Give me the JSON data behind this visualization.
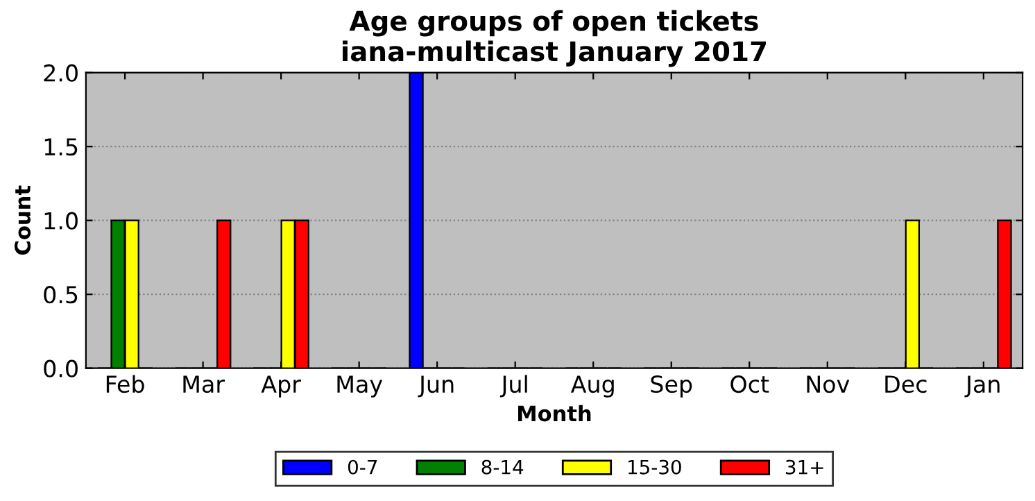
{
  "chart_data": {
    "type": "bar",
    "title": "Age groups of open tickets\niana-multicast January 2017",
    "xlabel": "Month",
    "ylabel": "Count",
    "categories": [
      "Feb",
      "Mar",
      "Apr",
      "May",
      "Jun",
      "Jul",
      "Aug",
      "Sep",
      "Oct",
      "Nov",
      "Dec",
      "Jan"
    ],
    "series": [
      {
        "name": "0-7",
        "color": "#0000ff",
        "values": [
          0,
          0,
          0,
          0,
          2,
          0,
          0,
          0,
          0,
          0,
          0,
          0
        ]
      },
      {
        "name": "8-14",
        "color": "#008000",
        "values": [
          1,
          0,
          0,
          0,
          0,
          0,
          0,
          0,
          0,
          0,
          0,
          0
        ]
      },
      {
        "name": "15-30",
        "color": "#ffff00",
        "values": [
          1,
          0,
          1,
          0,
          0,
          0,
          0,
          0,
          0,
          0,
          1,
          0
        ]
      },
      {
        "name": "31+",
        "color": "#ff0000",
        "values": [
          0,
          1,
          1,
          0,
          0,
          0,
          0,
          0,
          0,
          0,
          0,
          1
        ]
      }
    ],
    "ylim": [
      0,
      2
    ],
    "yticks": [
      {
        "value": 0,
        "label": "0.0"
      },
      {
        "value": 0.5,
        "label": "0.5"
      },
      {
        "value": 1,
        "label": "1.0"
      },
      {
        "value": 1.5,
        "label": "1.5"
      },
      {
        "value": 2,
        "label": "2.0"
      }
    ],
    "grid": "y",
    "legend": "bottom"
  }
}
